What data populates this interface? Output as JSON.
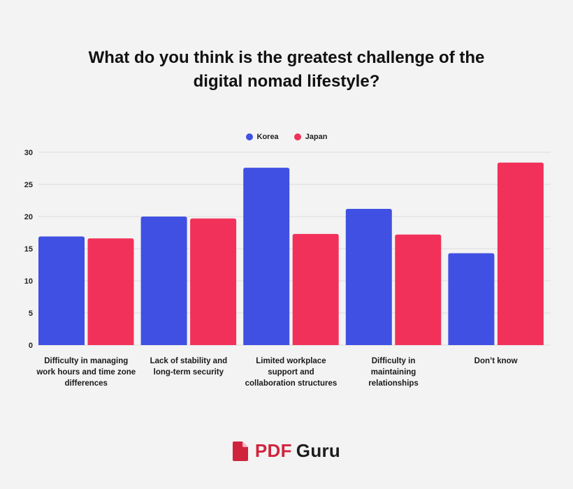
{
  "chart_data": {
    "type": "bar",
    "title_lines": [
      "What do you think is the greatest challenge of the",
      "digital nomad lifestyle?"
    ],
    "categories": [
      [
        "Difficulty in managing",
        "work hours and time zone",
        "differences"
      ],
      [
        "Lack of stability and",
        "long-term security"
      ],
      [
        "Limited workplace",
        "support and",
        "collaboration structures"
      ],
      [
        "Difficulty in",
        "maintaining",
        "relationships"
      ],
      [
        "Don’t know"
      ]
    ],
    "series": [
      {
        "name": "Korea",
        "color": "#3f50e2",
        "values": [
          16.9,
          20.0,
          27.6,
          21.2,
          14.3
        ]
      },
      {
        "name": "Japan",
        "color": "#f2315a",
        "values": [
          16.6,
          19.7,
          17.3,
          17.2,
          28.4
        ]
      }
    ],
    "yticks": [
      "0",
      "5",
      "10",
      "15",
      "20",
      "25",
      "30"
    ],
    "ylim": [
      0,
      30
    ],
    "grid": true,
    "legend_position": "top-center"
  },
  "brand": {
    "name_part1": "PDF",
    "name_part2": "Guru",
    "icon": "pdf-file-icon",
    "color": "#d0243d"
  }
}
